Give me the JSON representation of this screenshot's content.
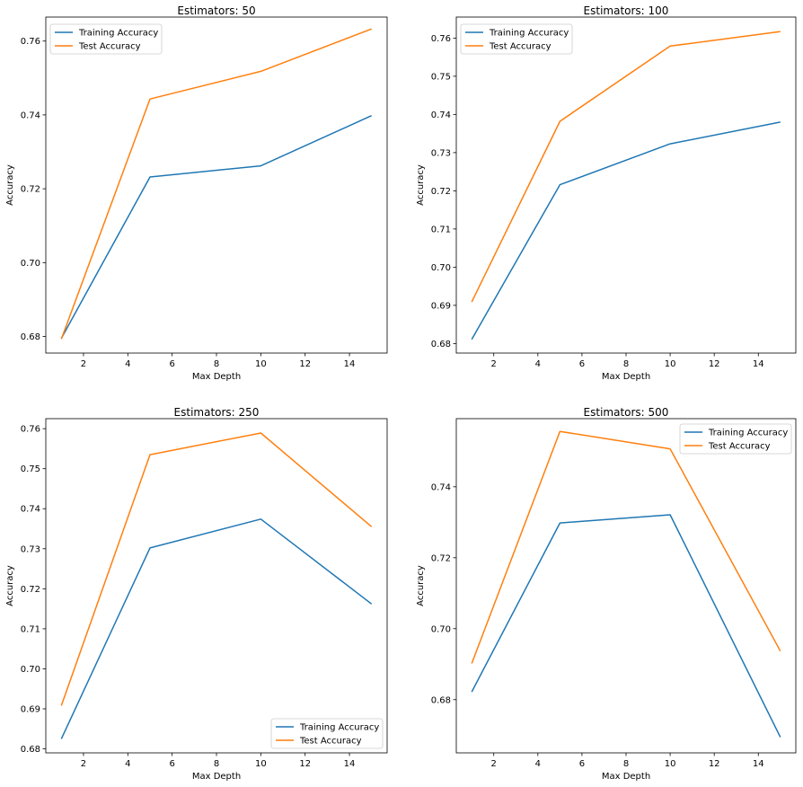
{
  "series_colors": {
    "Training Accuracy": "#1f77b4",
    "Test Accuracy": "#ff7f0e"
  },
  "chart_data": [
    {
      "type": "line",
      "title": "Estimators: 50",
      "xlabel": "Max Depth",
      "ylabel": "Accuracy",
      "x": [
        1,
        5,
        10,
        15
      ],
      "xticks": [
        2,
        4,
        6,
        8,
        10,
        12,
        14
      ],
      "yticks": [
        0.68,
        0.7,
        0.72,
        0.74,
        0.76
      ],
      "yticklabels": [
        "0.68",
        "0.70",
        "0.72",
        "0.74",
        "0.76"
      ],
      "xlim": [
        0.3,
        15.7
      ],
      "ylim": [
        0.6755,
        0.7665
      ],
      "legend": "upper left",
      "series": [
        {
          "name": "Training Accuracy",
          "values": [
            0.6795,
            0.7232,
            0.7262,
            0.7398
          ]
        },
        {
          "name": "Test Accuracy",
          "values": [
            0.6793,
            0.7443,
            0.7518,
            0.7633
          ]
        }
      ]
    },
    {
      "type": "line",
      "title": "Estimators: 100",
      "xlabel": "Max Depth",
      "ylabel": "Accuracy",
      "x": [
        1,
        5,
        10,
        15
      ],
      "xticks": [
        2,
        4,
        6,
        8,
        10,
        12,
        14
      ],
      "yticks": [
        0.68,
        0.69,
        0.7,
        0.71,
        0.72,
        0.73,
        0.74,
        0.75,
        0.76
      ],
      "yticklabels": [
        "0.68",
        "0.69",
        "0.70",
        "0.71",
        "0.72",
        "0.73",
        "0.74",
        "0.75",
        "0.76"
      ],
      "xlim": [
        0.3,
        15.7
      ],
      "ylim": [
        0.6775,
        0.7655
      ],
      "legend": "upper left",
      "series": [
        {
          "name": "Training Accuracy",
          "values": [
            0.6811,
            0.7216,
            0.7323,
            0.738
          ]
        },
        {
          "name": "Test Accuracy",
          "values": [
            0.6909,
            0.7382,
            0.7579,
            0.7617
          ]
        }
      ]
    },
    {
      "type": "line",
      "title": "Estimators: 250",
      "xlabel": "Max Depth",
      "ylabel": "Accuracy",
      "x": [
        1,
        5,
        10,
        15
      ],
      "xticks": [
        2,
        4,
        6,
        8,
        10,
        12,
        14
      ],
      "yticks": [
        0.68,
        0.69,
        0.7,
        0.71,
        0.72,
        0.73,
        0.74,
        0.75,
        0.76
      ],
      "yticklabels": [
        "0.68",
        "0.69",
        "0.70",
        "0.71",
        "0.72",
        "0.73",
        "0.74",
        "0.75",
        "0.76"
      ],
      "xlim": [
        0.3,
        15.7
      ],
      "ylim": [
        0.679,
        0.7625
      ],
      "legend": "lower right",
      "series": [
        {
          "name": "Training Accuracy",
          "values": [
            0.6825,
            0.7302,
            0.7374,
            0.7162
          ]
        },
        {
          "name": "Test Accuracy",
          "values": [
            0.6908,
            0.7535,
            0.7589,
            0.7355
          ]
        }
      ]
    },
    {
      "type": "line",
      "title": "Estimators: 500",
      "xlabel": "Max Depth",
      "ylabel": "Accuracy",
      "x": [
        1,
        5,
        10,
        15
      ],
      "xticks": [
        2,
        4,
        6,
        8,
        10,
        12,
        14
      ],
      "yticks": [
        0.68,
        0.7,
        0.72,
        0.74
      ],
      "yticklabels": [
        "0.68",
        "0.70",
        "0.72",
        "0.74"
      ],
      "xlim": [
        0.3,
        15.7
      ],
      "ylim": [
        0.665,
        0.7592
      ],
      "legend": "upper right",
      "series": [
        {
          "name": "Training Accuracy",
          "values": [
            0.6822,
            0.7298,
            0.7321,
            0.6694
          ]
        },
        {
          "name": "Test Accuracy",
          "values": [
            0.6902,
            0.7556,
            0.7507,
            0.6937
          ]
        }
      ]
    }
  ]
}
